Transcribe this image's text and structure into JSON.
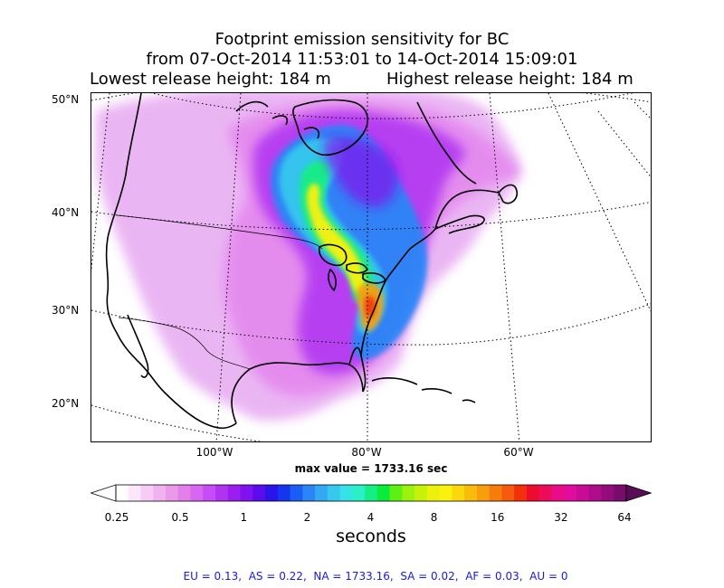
{
  "title": {
    "line1": "Footprint emission sensitivity for BC",
    "line2": "from 07-Oct-2014 11:53:01 to 14-Oct-2014 15:09:01",
    "release_low": "Lowest release height: 184 m",
    "release_high": "Highest release height: 184 m"
  },
  "map": {
    "lat_labels": [
      "50°N",
      "40°N",
      "30°N",
      "20°N"
    ],
    "lon_labels": [
      "100°W",
      "80°W",
      "60°W"
    ],
    "max_value_text": "max value = 1733.16 sec"
  },
  "colorbar": {
    "ticks": [
      "0.25",
      "0.5",
      "1",
      "2",
      "4",
      "8",
      "16",
      "32",
      "64"
    ],
    "label": "seconds",
    "colors": [
      "#ffffff",
      "#fbe6fb",
      "#f6ccf6",
      "#f0b3f0",
      "#ea99ea",
      "#e37fe9",
      "#d965f3",
      "#c74bf6",
      "#b133f2",
      "#9a1ef0",
      "#7f12ee",
      "#5a0ced",
      "#2a14ea",
      "#1437ee",
      "#1b5ef5",
      "#2a86f7",
      "#33a9f4",
      "#36c8ee",
      "#37e2e6",
      "#2af0c8",
      "#14ee84",
      "#0aec3a",
      "#5ef012",
      "#9af20e",
      "#c6f20a",
      "#ecf00c",
      "#faf20c",
      "#f9d80c",
      "#f8bc0c",
      "#f89e0c",
      "#f87c0c",
      "#f65a0c",
      "#f2300c",
      "#ee0c2e",
      "#ec0c5a",
      "#ea0c86",
      "#e00c9e",
      "#c80c96",
      "#ae0c8a",
      "#920c7c",
      "#780c6c"
    ],
    "over_color": "#5a0c56"
  },
  "region_stats": "EU = 0.13,  AS = 0.22,  NA = 1733.16,  SA = 0.02,  AF = 0.03,  AU = 0",
  "chart_data": {
    "type": "heatmap",
    "title": "Footprint emission sensitivity for BC",
    "colorbar_ticks": [
      0.25,
      0.5,
      1,
      2,
      4,
      8,
      16,
      32,
      64
    ],
    "colorbar_scale": "log",
    "colorbar_label": "seconds",
    "max_value": 1733.16,
    "region_totals": [
      {
        "region": "EU",
        "value": 0.13
      },
      {
        "region": "AS",
        "value": 0.22
      },
      {
        "region": "NA",
        "value": 1733.16
      },
      {
        "region": "SA",
        "value": 0.02
      },
      {
        "region": "AF",
        "value": 0.03
      },
      {
        "region": "AU",
        "value": 0
      }
    ],
    "lat_ticks": [
      "50°N",
      "40°N",
      "30°N",
      "20°N"
    ],
    "lon_ticks": [
      "100°W",
      "80°W",
      "60°W"
    ]
  }
}
